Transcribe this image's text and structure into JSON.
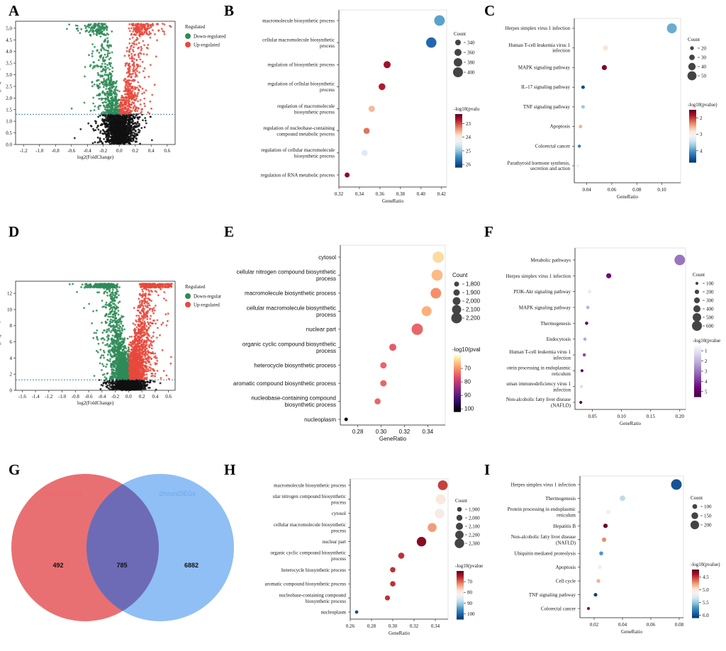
{
  "panels": {
    "A": {
      "label": "A",
      "type": "volcano",
      "xlabel": "log2(FoldChange)",
      "ylabel": "-log10(pvalue)",
      "xticks": [
        "-1.2",
        "-1.0",
        "-0.8",
        "-0.6",
        "-0.4",
        "-0.2",
        "0.0",
        "0.2",
        "0.4",
        "0.6"
      ],
      "yticks": [
        "0.0",
        "0.5",
        "1.0",
        "1.5",
        "2.0",
        "2.5",
        "3.0",
        "3.5",
        "4.0",
        "4.5",
        "5.0"
      ],
      "legend_title": "Regulated",
      "legend": [
        "Down-regulated",
        "Up-regulated"
      ]
    },
    "D": {
      "label": "D",
      "type": "volcano",
      "xlabel": "log2(FoldChange)",
      "ylabel": "-log10(pvalue)",
      "xticks": [
        "-1.6",
        "-1.4",
        "-1.2",
        "-1.0",
        "-0.8",
        "-0.6",
        "-0.4",
        "-0.2",
        "0.0",
        "0.2",
        "0.4",
        "0.6"
      ],
      "yticks": [
        "0",
        "2",
        "4",
        "6",
        "8",
        "10",
        "12"
      ],
      "legend_title": "Regulated",
      "legend": [
        "Down-regulat",
        "Up-regulated"
      ]
    },
    "B": {
      "label": "B",
      "xlabel": "GeneRatio",
      "xticks": [
        "0.32",
        "0.34",
        "0.36",
        "0.38",
        "0.40",
        "0.42"
      ],
      "terms": [
        "macromolecule biosynthetic process",
        "cellular macromolecule biosynthetic process",
        "regulation of biosynthetic process",
        "regulation of cellular biosynthetic process",
        "regulation of macromolecule biosynthetic process",
        "regulation of nucleobase-containing compound metabolic process",
        "regulation of cellular macromolecule biosynthetic process",
        "regulation of RNA metabolic process"
      ],
      "size_title": "Count",
      "size_labels": [
        "340",
        "360",
        "380",
        "400"
      ],
      "color_title": "-log10(pvalu",
      "color_labels": [
        "23",
        "24",
        "25",
        "26"
      ]
    },
    "C": {
      "label": "C",
      "xlabel": "GeneRatio",
      "xticks": [
        "0.04",
        "0.06",
        "0.08",
        "0.10"
      ],
      "terms": [
        "Herpes simplex virus 1 infection",
        "Human T-cell leukemia virus 1 infection",
        "MAPK signaling pathway",
        "IL-17 signaling pathway",
        "TNF signaling pathway",
        "Apoptosis",
        "Colorectal cancer",
        "Parathyroid hormone synthesis, secretion and action"
      ],
      "size_title": "Count",
      "size_labels": [
        "20",
        "30",
        "40",
        "50"
      ],
      "color_title": "-log10(pvalue)",
      "color_labels": [
        "2",
        "3",
        "4"
      ]
    },
    "E": {
      "label": "E",
      "xlabel": "GeneRatio",
      "xticks": [
        "0.28",
        "0.30",
        "0.32",
        "0.34"
      ],
      "terms": [
        "cytosol",
        "cellular nitrogen compound biosynthetic process",
        "macromolecule biosynthetic process",
        "cellular macromolecule biosynthetic process",
        "nuclear part",
        "organic cyclic compound biosynthetic process",
        "heterocycle biosynthetic process",
        "aromatic compound biosynthetic process",
        "nucleobase-containing compound biosynthetic process",
        "nucleoplasm"
      ],
      "size_title": "Count",
      "size_labels": [
        "1,800",
        "1,900",
        "2,000",
        "2,100",
        "2,200"
      ],
      "color_title": "-log10(pval",
      "color_labels": [
        "70",
        "80",
        "90",
        "100"
      ]
    },
    "F": {
      "label": "F",
      "xlabel": "GeneRatio",
      "xticks": [
        "0.05",
        "0.10",
        "0.15",
        "0.20"
      ],
      "terms": [
        "Metabolic pathways",
        "Herpes simplex virus 1 infection",
        "PI3K-Akt signaling pathway",
        "MAPK signaling pathway",
        "Thermogenesis",
        "Endocytosis",
        "Human T-cell leukemia virus 1 infection",
        "otein processing in endoplasmic reticulum",
        "uman immunodeficiency virus 1 infection",
        "Non-alcoholic fatty liver disease (NAFLD)"
      ],
      "size_title": "Count",
      "size_labels": [
        "100",
        "200",
        "300",
        "400",
        "500",
        "600"
      ],
      "color_title": "-log10(pvalue",
      "color_labels": [
        "1",
        "2",
        "3",
        "4",
        "5"
      ]
    },
    "G": {
      "label": "G",
      "set1": "1hoursDEGs",
      "set2": "2hoursDEGs",
      "only1": "492",
      "both": "785",
      "only2": "6882"
    },
    "H": {
      "label": "H",
      "xlabel": "GeneRatio",
      "xticks": [
        "0.26",
        "0.28",
        "0.30",
        "0.32",
        "0.34"
      ],
      "terms": [
        "macromolecule biosynthetic process",
        "ular nitrogen compound biosynthetic process",
        "cytosol",
        "cellular macromolecule biosynthetic process",
        "nuclear part",
        "organic cyclic compound biosynthetic process",
        "heterocycle biosynthetic process",
        "aromatic compound biosynthetic process",
        "nucleobase-containing compound biosynthetic process",
        "nucleoplasm"
      ],
      "size_title": "Count",
      "size_labels": [
        "1,900",
        "2,000",
        "2,100",
        "2,200",
        "2,300"
      ],
      "color_title": "-log10(pvalue",
      "color_labels": [
        "70",
        "80",
        "90",
        "100"
      ]
    },
    "I": {
      "label": "I",
      "xlabel": "GeneRatio",
      "xticks": [
        "0.02",
        "0.04",
        "0.06",
        "0.08"
      ],
      "terms": [
        "Herpes simplex virus 1 infection",
        "Thermogenesis",
        "Protein processing in endoplasmic reticulum",
        "Hepatitis B",
        "Non-alcoholic fatty liver disease (NAFLD)",
        "Ubiquitin mediated proteolysis",
        "Apoptosis",
        "Cell cycle",
        "TNF signaling pathway",
        "Colorectal cancer"
      ],
      "size_title": "Count",
      "size_labels": [
        "100",
        "150",
        "200"
      ],
      "color_title": "-log10(pvalue)",
      "color_labels": [
        "4.5",
        "5.0",
        "5.5",
        "6.0"
      ]
    }
  },
  "chart_data": [
    {
      "type": "scatter",
      "panel": "A",
      "title": "",
      "xlabel": "log2(FoldChange)",
      "ylabel": "-log10(pvalue)",
      "xlim": [
        -1.3,
        0.7
      ],
      "ylim": [
        0,
        5.3
      ],
      "threshold": 1.3,
      "series": [
        {
          "name": "Down-regulated",
          "color": "#2e8b57"
        },
        {
          "name": "Up-regulated",
          "color": "#e8493c"
        },
        {
          "name": "Not significant",
          "color": "#111111"
        }
      ]
    },
    {
      "type": "scatter",
      "panel": "D",
      "title": "",
      "xlabel": "log2(FoldChange)",
      "ylabel": "-log10(pvalue)",
      "xlim": [
        -1.7,
        0.7
      ],
      "ylim": [
        0,
        13.5
      ],
      "threshold": 1.3,
      "series": [
        {
          "name": "Down-regulat",
          "color": "#2e8b57"
        },
        {
          "name": "Up-regulated",
          "color": "#e8493c"
        },
        {
          "name": "Not significant",
          "color": "#111111"
        }
      ]
    },
    {
      "type": "scatter",
      "panel": "B",
      "xlabel": "GeneRatio",
      "xlim": [
        0.32,
        0.425
      ],
      "size_legend": [
        340,
        360,
        380,
        400
      ],
      "color_legend": [
        23,
        24,
        25,
        26
      ],
      "points": [
        {
          "term": "macromolecule biosynthetic process",
          "x": 0.418,
          "count": 410,
          "p": 25.3
        },
        {
          "term": "cellular macromolecule biosynthetic process",
          "x": 0.41,
          "count": 405,
          "p": 25.8
        },
        {
          "term": "regulation of biosynthetic process",
          "x": 0.367,
          "count": 360,
          "p": 22.6
        },
        {
          "term": "regulation of cellular biosynthetic process",
          "x": 0.362,
          "count": 357,
          "p": 22.7
        },
        {
          "term": "regulation of macromolecule biosynthetic process",
          "x": 0.352,
          "count": 350,
          "p": 23.6
        },
        {
          "term": "regulation of nucleobase-containing compound metabolic process",
          "x": 0.347,
          "count": 347,
          "p": 23.2
        },
        {
          "term": "regulation of cellular macromolecule biosynthetic process",
          "x": 0.345,
          "count": 343,
          "p": 24.5
        },
        {
          "term": "regulation of RNA metabolic process",
          "x": 0.328,
          "count": 330,
          "p": 22.5
        }
      ]
    },
    {
      "type": "scatter",
      "panel": "C",
      "xlabel": "GeneRatio",
      "xlim": [
        0.03,
        0.115
      ],
      "size_legend": [
        20,
        30,
        40,
        50
      ],
      "color_legend": [
        2,
        3,
        4
      ],
      "points": [
        {
          "term": "Herpes simplex virus 1 infection",
          "x": 0.108,
          "count": 55,
          "p": 3.9
        },
        {
          "term": "Human T-cell leukemia virus 1 infection",
          "x": 0.055,
          "count": 28,
          "p": 2.8
        },
        {
          "term": "MAPK signaling pathway",
          "x": 0.054,
          "count": 27,
          "p": 1.6
        },
        {
          "term": "IL-17 signaling pathway",
          "x": 0.037,
          "count": 18,
          "p": 4.6
        },
        {
          "term": "TNF signaling pathway",
          "x": 0.037,
          "count": 18,
          "p": 3.7
        },
        {
          "term": "Apoptosis",
          "x": 0.035,
          "count": 17,
          "p": 2.5
        },
        {
          "term": "Colorectal cancer",
          "x": 0.034,
          "count": 16,
          "p": 4.2
        },
        {
          "term": "Parathyroid hormone synthesis, secretion and action",
          "x": 0.033,
          "count": 15,
          "p": 3.0
        }
      ]
    },
    {
      "type": "scatter",
      "panel": "E",
      "xlabel": "GeneRatio",
      "xlim": [
        0.265,
        0.355
      ],
      "size_legend": [
        1800,
        1900,
        2000,
        2100,
        2200
      ],
      "color_legend": [
        70,
        80,
        90,
        100
      ],
      "points": [
        {
          "term": "cytosol",
          "x": 0.349,
          "count": 2250,
          "p": 63
        },
        {
          "term": "cellular nitrogen compound biosynthetic process",
          "x": 0.348,
          "count": 2230,
          "p": 66
        },
        {
          "term": "macromolecule biosynthetic process",
          "x": 0.347,
          "count": 2200,
          "p": 70
        },
        {
          "term": "cellular macromolecule biosynthetic process",
          "x": 0.339,
          "count": 2150,
          "p": 67
        },
        {
          "term": "nuclear part",
          "x": 0.331,
          "count": 2250,
          "p": 74
        },
        {
          "term": "organic cyclic compound biosynthetic process",
          "x": 0.31,
          "count": 1950,
          "p": 75
        },
        {
          "term": "heterocycle biosynthetic process",
          "x": 0.302,
          "count": 1900,
          "p": 74
        },
        {
          "term": "aromatic compound biosynthetic process",
          "x": 0.302,
          "count": 1900,
          "p": 74
        },
        {
          "term": "nucleobase-containing compound biosynthetic process",
          "x": 0.297,
          "count": 1880,
          "p": 74
        },
        {
          "term": "nucleoplasm",
          "x": 0.27,
          "count": 1700,
          "p": 100
        }
      ]
    },
    {
      "type": "scatter",
      "panel": "F",
      "xlabel": "GeneRatio",
      "xlim": [
        0.02,
        0.21
      ],
      "size_legend": [
        100,
        200,
        300,
        400,
        500,
        600
      ],
      "color_legend": [
        1,
        2,
        3,
        4,
        5
      ],
      "points": [
        {
          "term": "Metabolic pathways",
          "x": 0.2,
          "count": 650,
          "p": 3.0
        },
        {
          "term": "Herpes simplex virus 1 infection",
          "x": 0.078,
          "count": 250,
          "p": 4.6
        },
        {
          "term": "PI3K-Akt signaling pathway",
          "x": 0.045,
          "count": 160,
          "p": 0.8
        },
        {
          "term": "MAPK signaling pathway",
          "x": 0.042,
          "count": 130,
          "p": 2.0
        },
        {
          "term": "Thermogenesis",
          "x": 0.04,
          "count": 120,
          "p": 5.0
        },
        {
          "term": "Endocytosis",
          "x": 0.037,
          "count": 125,
          "p": 2.2
        },
        {
          "term": "Human T-cell leukemia virus 1 infection",
          "x": 0.036,
          "count": 120,
          "p": 3.6
        },
        {
          "term": "otein processing in endoplasmic reticulum",
          "x": 0.032,
          "count": 100,
          "p": 5.2
        },
        {
          "term": "uman immunodeficiency virus 1 infection",
          "x": 0.031,
          "count": 105,
          "p": 1.2
        },
        {
          "term": "Non-alcoholic fatty liver disease (NAFLD)",
          "x": 0.03,
          "count": 100,
          "p": 5.3
        }
      ]
    },
    {
      "type": "venn",
      "panel": "G",
      "sets": [
        {
          "name": "1hoursDEGs",
          "color": "#e8686a"
        },
        {
          "name": "2hoursDEGs",
          "color": "#6aaaf0"
        }
      ],
      "only_1": 492,
      "intersection": 785,
      "only_2": 6882
    },
    {
      "type": "scatter",
      "panel": "H",
      "xlabel": "GeneRatio",
      "xlim": [
        0.26,
        0.352
      ],
      "size_legend": [
        1900,
        2000,
        2100,
        2200,
        2300
      ],
      "color_legend": [
        70,
        80,
        90,
        100
      ],
      "points": [
        {
          "term": "macromolecule biosynthetic process",
          "x": 0.347,
          "count": 2320,
          "p": 67
        },
        {
          "term": "ular nitrogen compound biosynthetic process",
          "x": 0.345,
          "count": 2330,
          "p": 79
        },
        {
          "term": "cytosol",
          "x": 0.344,
          "count": 2310,
          "p": 80
        },
        {
          "term": "cellular macromolecule biosynthetic process",
          "x": 0.337,
          "count": 2250,
          "p": 73
        },
        {
          "term": "nuclear part",
          "x": 0.327,
          "count": 2300,
          "p": 62
        },
        {
          "term": "organic cyclic compound biosynthetic process",
          "x": 0.308,
          "count": 2020,
          "p": 66
        },
        {
          "term": "heterocycle biosynthetic process",
          "x": 0.3,
          "count": 1960,
          "p": 66
        },
        {
          "term": "aromatic compound biosynthetic process",
          "x": 0.3,
          "count": 1960,
          "p": 66
        },
        {
          "term": "nucleobase-containing compound biosynthetic process",
          "x": 0.295,
          "count": 1930,
          "p": 66
        },
        {
          "term": "nucleoplasm",
          "x": 0.266,
          "count": 1800,
          "p": 103
        }
      ]
    },
    {
      "type": "scatter",
      "panel": "I",
      "xlabel": "GeneRatio",
      "xlim": [
        0.01,
        0.083
      ],
      "size_legend": [
        100,
        150,
        200
      ],
      "color_legend": [
        4.5,
        5.0,
        5.5,
        6.0
      ],
      "points": [
        {
          "term": "Herpes simplex virus 1 infection",
          "x": 0.078,
          "count": 250,
          "p": 6.0
        },
        {
          "term": "Thermogenesis",
          "x": 0.04,
          "count": 120,
          "p": 5.4
        },
        {
          "term": "Protein processing in endoplasmic reticulum",
          "x": 0.03,
          "count": 95,
          "p": 5.1
        },
        {
          "term": "Hepatitis B",
          "x": 0.028,
          "count": 90,
          "p": 4.2
        },
        {
          "term": "Non-alcoholic fatty liver disease (NAFLD)",
          "x": 0.027,
          "count": 90,
          "p": 4.7
        },
        {
          "term": "Ubiquitin mediated proteolysis",
          "x": 0.025,
          "count": 80,
          "p": 5.7
        },
        {
          "term": "Apoptosis",
          "x": 0.024,
          "count": 75,
          "p": 5.2
        },
        {
          "term": "Cell cycle",
          "x": 0.023,
          "count": 75,
          "p": 4.8
        },
        {
          "term": "TNF signaling pathway",
          "x": 0.021,
          "count": 70,
          "p": 6.1
        },
        {
          "term": "Colorectal cancer",
          "x": 0.016,
          "count": 55,
          "p": 4.3
        }
      ]
    }
  ]
}
